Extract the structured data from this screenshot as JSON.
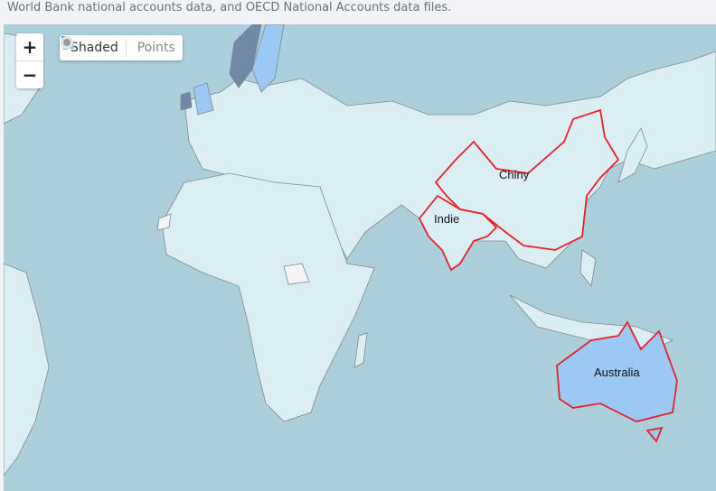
{
  "source_text": "World Bank national accounts data, and OECD National Accounts data files.",
  "zoom": {
    "in_label": "+",
    "out_label": "−"
  },
  "view_toggle": {
    "options": [
      {
        "label": "Shaded",
        "icon": "shaded-squares-icon",
        "selected": true
      },
      {
        "label": "Points",
        "icon": "points-dot-icon",
        "selected": false
      }
    ]
  },
  "highlighted_countries": [
    {
      "label": "Chiny",
      "outline_color": "#e8202a"
    },
    {
      "label": "Indie",
      "outline_color": "#e8202a"
    },
    {
      "label": "Australia",
      "outline_color": "#e8202a"
    }
  ],
  "colors": {
    "ocean": "#abd0dc",
    "land_default": "#dbeef4",
    "land_high": "#9cc9f3",
    "land_very_high": "#6f89a6",
    "no_data": "#f4f4f4",
    "highlight_outline": "#e8202a"
  }
}
